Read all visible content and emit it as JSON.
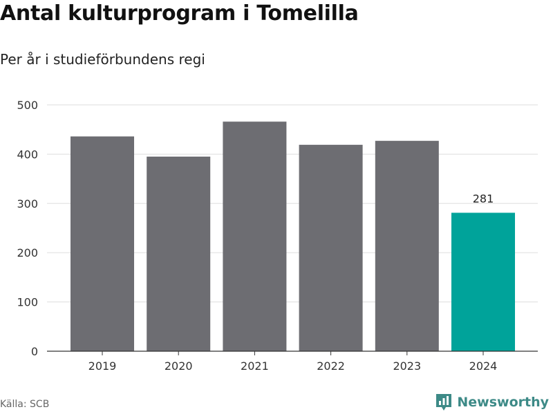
{
  "header": {
    "title": "Antal kulturprogram i Tomelilla",
    "subtitle": "Per år i studieförbundens regi"
  },
  "footer": {
    "source": "Källa: SCB",
    "brand": "Newsworthy",
    "brand_icon": "bar-chart-pin-icon"
  },
  "colors": {
    "bar_default": "#6d6d72",
    "bar_highlight": "#00a39a",
    "grid": "#dddddd",
    "axis": "#333333",
    "brand": "#3d8a87"
  },
  "chart_data": {
    "type": "bar",
    "categories": [
      "2019",
      "2020",
      "2021",
      "2022",
      "2023",
      "2024"
    ],
    "values": [
      436,
      395,
      466,
      419,
      427,
      281
    ],
    "highlight_index": 5,
    "data_labels": [
      {
        "index": 5,
        "text": "281"
      }
    ],
    "ylim": [
      0,
      500
    ],
    "yticks": [
      0,
      100,
      200,
      300,
      400,
      500
    ],
    "grid": true,
    "xlabel": "",
    "ylabel": ""
  }
}
